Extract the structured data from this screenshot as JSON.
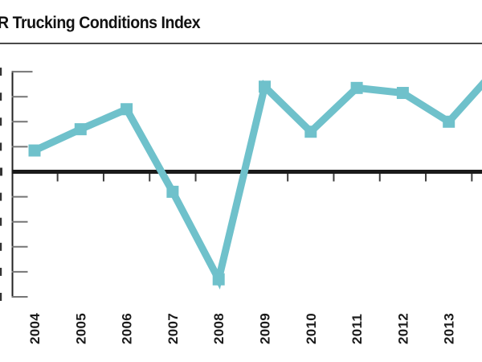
{
  "title": "R Trucking Conditions Index",
  "colors": {
    "line": "#6fc1cb",
    "marker": "#6fc1cb",
    "zero_line": "#1a1a1a",
    "axis": "#222222",
    "y_tick": "#757575",
    "x_tick": "#3d3d3d",
    "year_label": "#1a1a1a",
    "cropped_label_fragment": "#333333",
    "title_rule": "#4a4a4a",
    "background": "#ffffff"
  },
  "chart_data": {
    "type": "line",
    "title": "R Trucking Conditions Index",
    "categories": [
      "2004",
      "2005",
      "2006",
      "2007",
      "2008",
      "2009",
      "2010",
      "2011",
      "2012",
      "2013"
    ],
    "series": [
      {
        "name": "Trucking Conditions Index",
        "values": [
          1.7,
          3.4,
          5.0,
          -1.6,
          -8.6,
          6.8,
          3.2,
          6.7,
          6.3,
          4.0
        ]
      }
    ],
    "offscreen_continuation": {
      "value": 8.1,
      "note": "line continues beyond right crop toward next year; its label and marker are not visible"
    },
    "y_ticks": [
      8,
      6,
      4,
      2,
      0,
      -2,
      -4,
      -6,
      -8,
      -10
    ],
    "y_tick_labels_visible": false,
    "ylim": [
      -10,
      8
    ],
    "xlabel": "",
    "ylabel": "",
    "grid": false,
    "legend": "none",
    "zero_baseline": true,
    "x_tick_position": "midpoints-between-years",
    "x_label_rotation_deg": -90
  }
}
